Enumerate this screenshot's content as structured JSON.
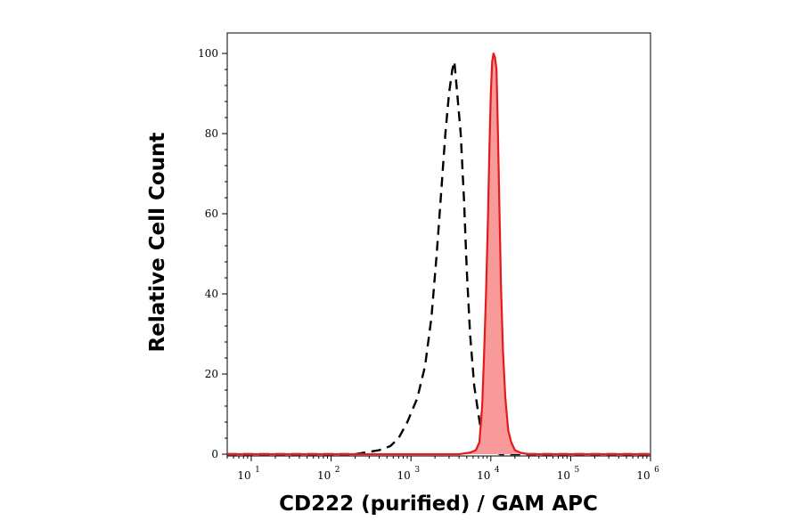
{
  "chart_data": {
    "type": "area",
    "xlabel": "CD222 (purified) / GAM APC",
    "ylabel": "Relative Cell Count",
    "x_scale": "log",
    "xlim": [
      5,
      1000000
    ],
    "ylim": [
      0,
      100
    ],
    "x_ticks": [
      {
        "base": "10",
        "exp": "1",
        "value": 10
      },
      {
        "base": "10",
        "exp": "2",
        "value": 100
      },
      {
        "base": "10",
        "exp": "3",
        "value": 1000
      },
      {
        "base": "10",
        "exp": "4",
        "value": 10000
      },
      {
        "base": "10",
        "exp": "5",
        "value": 100000
      },
      {
        "base": "10",
        "exp": "6",
        "value": 1000000
      }
    ],
    "y_ticks": [
      "0",
      "20",
      "40",
      "60",
      "80",
      "100"
    ],
    "grid": false,
    "legend": "none",
    "series": [
      {
        "style": "dashed-outline",
        "color": "#000000",
        "points": [
          [
            5,
            0
          ],
          [
            200,
            0
          ],
          [
            400,
            1
          ],
          [
            550,
            2
          ],
          [
            700,
            4
          ],
          [
            900,
            8
          ],
          [
            1200,
            14
          ],
          [
            1500,
            22
          ],
          [
            1800,
            34
          ],
          [
            2100,
            50
          ],
          [
            2400,
            66
          ],
          [
            2700,
            80
          ],
          [
            3000,
            90
          ],
          [
            3300,
            96
          ],
          [
            3500,
            98
          ],
          [
            3800,
            90
          ],
          [
            4200,
            80
          ],
          [
            4600,
            64
          ],
          [
            5000,
            46
          ],
          [
            5500,
            30
          ],
          [
            6200,
            17
          ],
          [
            7000,
            10
          ],
          [
            7800,
            4
          ],
          [
            8600,
            7
          ],
          [
            9500,
            2
          ],
          [
            10500,
            1
          ],
          [
            13000,
            0
          ],
          [
            1000000,
            0
          ]
        ]
      },
      {
        "style": "filled",
        "color": "#e41a1c",
        "fill": "#f99a9a",
        "points": [
          [
            5,
            0
          ],
          [
            4000,
            0
          ],
          [
            5500,
            0.4
          ],
          [
            6500,
            1
          ],
          [
            7200,
            3
          ],
          [
            7800,
            12
          ],
          [
            8200,
            24
          ],
          [
            8700,
            40
          ],
          [
            9200,
            58
          ],
          [
            9600,
            76
          ],
          [
            10000,
            90
          ],
          [
            10400,
            98
          ],
          [
            10800,
            100
          ],
          [
            11300,
            99
          ],
          [
            11800,
            96
          ],
          [
            12300,
            80
          ],
          [
            12800,
            62
          ],
          [
            13400,
            42
          ],
          [
            14200,
            26
          ],
          [
            15200,
            14
          ],
          [
            16500,
            6
          ],
          [
            18000,
            3
          ],
          [
            20000,
            1
          ],
          [
            24000,
            0.3
          ],
          [
            30000,
            0
          ],
          [
            1000000,
            0
          ]
        ]
      }
    ]
  }
}
